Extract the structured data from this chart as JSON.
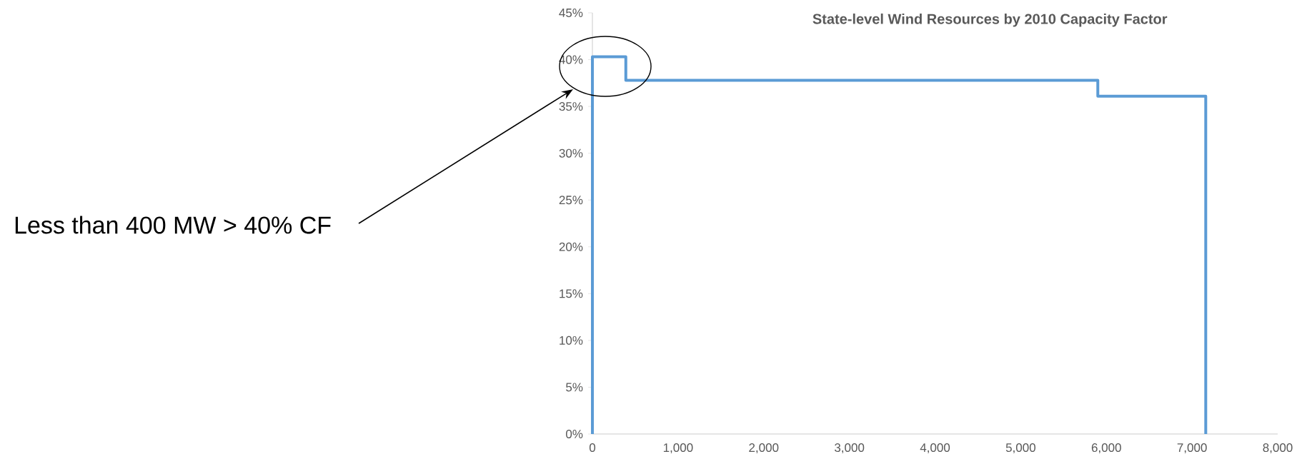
{
  "chart_data": {
    "type": "step",
    "title": "State-level Wind Resources by 2010 Capacity Factor",
    "x": [
      0,
      0,
      390,
      5900,
      7160,
      7160
    ],
    "values": [
      0,
      40.3,
      37.8,
      36.1,
      36.1,
      0
    ],
    "color": "#5b9bd5",
    "xlim": [
      0,
      8000
    ],
    "xticks": [
      0,
      {
        "value": 1000,
        "label": "1,000"
      },
      {
        "value": 2000,
        "label": "2,000"
      },
      {
        "value": 3000,
        "label": "3,000"
      },
      {
        "value": 4000,
        "label": "4,000"
      },
      {
        "value": 5000,
        "label": "5,000"
      },
      {
        "value": 6000,
        "label": "6,000"
      },
      {
        "value": 7000,
        "label": "7,000"
      },
      {
        "value": 8000,
        "label": "8,000"
      }
    ],
    "ylim": [
      0,
      45
    ],
    "yticks": [
      {
        "value": 0,
        "label": "0%"
      },
      {
        "value": 5,
        "label": "5%"
      },
      {
        "value": 10,
        "label": "10%"
      },
      {
        "value": 15,
        "label": "15%"
      },
      {
        "value": 20,
        "label": "20%"
      },
      {
        "value": 25,
        "label": "25%"
      },
      {
        "value": 30,
        "label": "30%"
      },
      {
        "value": 35,
        "label": "35%"
      },
      {
        "value": 40,
        "label": "40%"
      },
      {
        "value": 45,
        "label": "45%"
      }
    ],
    "annotations": [
      "Less than 400 MW > 40% CF"
    ]
  }
}
